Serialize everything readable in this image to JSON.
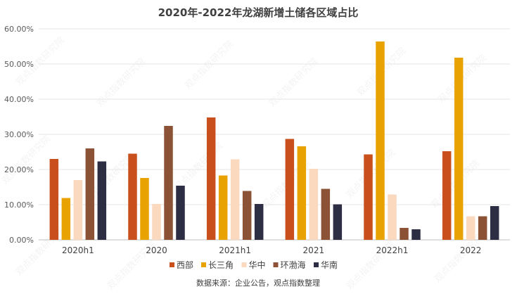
{
  "chart_data": {
    "type": "bar",
    "title": "2020年-2022年龙湖新增土储各区域占比",
    "categories": [
      "2020h1",
      "2020",
      "2021h1",
      "2021",
      "2022h1",
      "2022"
    ],
    "series": [
      {
        "name": "西部",
        "color": "#c9501c",
        "values": [
          23.0,
          24.5,
          34.8,
          28.7,
          24.3,
          25.2
        ]
      },
      {
        "name": "长三角",
        "color": "#e8a202",
        "values": [
          11.9,
          17.6,
          18.3,
          26.6,
          56.4,
          51.8
        ]
      },
      {
        "name": "华中",
        "color": "#fad9bf",
        "values": [
          17.0,
          10.2,
          22.9,
          20.2,
          12.9,
          6.7
        ]
      },
      {
        "name": "环渤海",
        "color": "#8b5235",
        "values": [
          26.0,
          32.4,
          13.9,
          14.5,
          3.4,
          6.7
        ]
      },
      {
        "name": "华南",
        "color": "#2d2d44",
        "values": [
          22.3,
          15.4,
          10.2,
          10.1,
          3.0,
          9.6
        ]
      }
    ],
    "yticks": [
      "0.00%",
      "10.00%",
      "20.00%",
      "30.00%",
      "40.00%",
      "50.00%",
      "60.00%"
    ],
    "ylim": [
      0,
      60
    ],
    "xlabel": "",
    "ylabel": "",
    "grid": true,
    "legend_position": "bottom",
    "source": "数据来源：企业公告，观点指数整理",
    "watermark": "观点指数研究院"
  }
}
